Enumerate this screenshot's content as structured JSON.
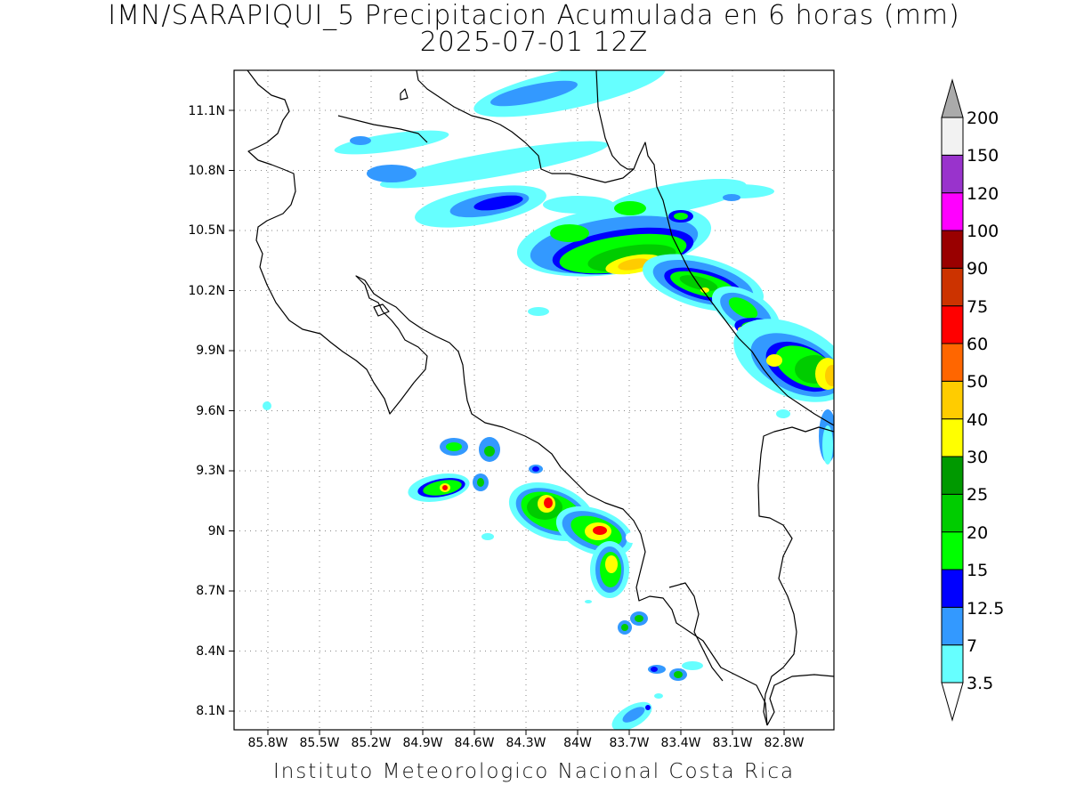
{
  "title": {
    "line1": "IMN/SARAPIQUI_5 Precipitacion Acumulada en 6 horas (mm)",
    "line2": "2025-07-01 12Z"
  },
  "footer": "Instituto Meteorologico Nacional Costa Rica",
  "axes": {
    "lat_labels": [
      "11.1N",
      "10.8N",
      "10.5N",
      "10.2N",
      "9.9N",
      "9.6N",
      "9.3N",
      "9N",
      "8.7N",
      "8.4N",
      "8.1N"
    ],
    "lon_labels": [
      "85.8W",
      "85.5W",
      "85.2W",
      "84.9W",
      "84.6W",
      "84.3W",
      "84W",
      "83.7W",
      "83.4W",
      "83.1W",
      "82.8W"
    ]
  },
  "colorbar": {
    "levels": [
      "3.5",
      "7",
      "12.5",
      "15",
      "20",
      "25",
      "30",
      "40",
      "50",
      "60",
      "75",
      "90",
      "100",
      "120",
      "150",
      "200"
    ],
    "colors": [
      "#66ffff",
      "#3399ff",
      "#0000ff",
      "#00ff00",
      "#00cc00",
      "#009900",
      "#ffff00",
      "#ffcc00",
      "#ff6600",
      "#ff0000",
      "#cc3300",
      "#990000",
      "#ff00ff",
      "#9933cc",
      "#f2f2f2",
      "#aaaaaa"
    ]
  }
}
